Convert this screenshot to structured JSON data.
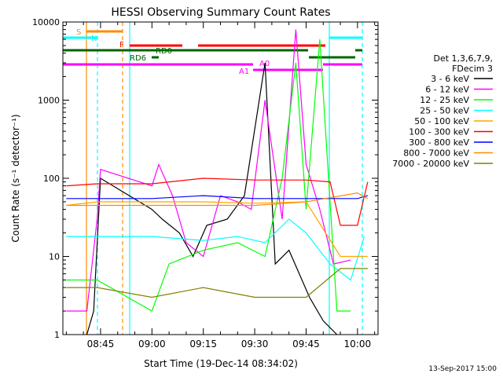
{
  "chart_data": {
    "type": "line",
    "title": "HESSI Observing Summary Count Rates",
    "xlabel": "Start Time (19-Dec-14 08:34:02)",
    "ylabel": "Count Rate (s⁻¹ detector⁻¹)",
    "y_scale": "log",
    "ylim": [
      1,
      10000
    ],
    "xlim": [
      "08:34",
      "10:06"
    ],
    "x_ticks": [
      "08:45",
      "09:00",
      "09:15",
      "09:30",
      "09:45",
      "10:00"
    ],
    "y_ticks": [
      "1",
      "10",
      "100",
      "1000",
      "10000"
    ],
    "legend_header": [
      "Det 1,3,6,7,9,",
      "FDecim 3"
    ],
    "legend_position": "right",
    "annotations": [
      {
        "text": "S",
        "color": "#ff8c00"
      },
      {
        "text": "N",
        "color": "#00ffff"
      },
      {
        "text": "F",
        "color": "#ff0000"
      },
      {
        "text": "RD0",
        "color": "#006400"
      },
      {
        "text": "RD6",
        "color": "#006400"
      },
      {
        "text": "A0",
        "color": "#ff00ff"
      },
      {
        "text": "A1",
        "color": "#ff00ff"
      }
    ],
    "series": [
      {
        "name": "3 - 6 keV",
        "color": "#000000",
        "x": [
          "08:41",
          "08:43",
          "08:45",
          "09:00",
          "09:03",
          "09:08",
          "09:12",
          "09:16",
          "09:22",
          "09:27",
          "09:33",
          "09:36",
          "09:40",
          "09:46",
          "09:50",
          "09:54"
        ],
        "values": [
          1,
          2,
          100,
          40,
          30,
          20,
          10,
          25,
          30,
          60,
          3000,
          8,
          12,
          3,
          1.5,
          1
        ]
      },
      {
        "name": "6 - 12 keV",
        "color": "#ff00ff",
        "x": [
          "08:35",
          "08:41",
          "08:44",
          "08:45",
          "09:00",
          "09:02",
          "09:06",
          "09:10",
          "09:15",
          "09:20",
          "09:25",
          "09:29",
          "09:33",
          "09:38",
          "09:42",
          "09:45",
          "09:49",
          "09:53",
          "09:58"
        ],
        "values": [
          2,
          2,
          30,
          130,
          80,
          150,
          60,
          15,
          10,
          60,
          50,
          40,
          1000,
          30,
          8000,
          150,
          40,
          8,
          9
        ]
      },
      {
        "name": "12 - 25 keV",
        "color": "#00ff00",
        "x": [
          "08:35",
          "08:44",
          "09:00",
          "09:05",
          "09:15",
          "09:25",
          "09:33",
          "09:38",
          "09:42",
          "09:45",
          "09:49",
          "09:54",
          "09:58"
        ],
        "values": [
          5,
          5,
          2,
          8,
          12,
          15,
          10,
          100,
          3000,
          40,
          6000,
          2,
          2
        ]
      },
      {
        "name": "25 - 50 keV",
        "color": "#00ffff",
        "x": [
          "08:35",
          "08:44",
          "09:00",
          "09:15",
          "09:25",
          "09:33",
          "09:40",
          "09:45",
          "09:52",
          "09:58",
          "10:02"
        ],
        "values": [
          18,
          18,
          18,
          16,
          18,
          15,
          30,
          20,
          8,
          5,
          18
        ]
      },
      {
        "name": "50 - 100 keV",
        "color": "#ffa500",
        "x": [
          "08:35",
          "08:44",
          "09:00",
          "09:15",
          "09:30",
          "09:45",
          "09:55",
          "10:00",
          "10:03"
        ],
        "values": [
          45,
          50,
          50,
          50,
          48,
          50,
          10,
          10,
          10
        ]
      },
      {
        "name": "100 - 300 keV",
        "color": "#ff0000",
        "x": [
          "08:35",
          "08:44",
          "09:00",
          "09:15",
          "09:30",
          "09:45",
          "09:52",
          "09:55",
          "10:00",
          "10:03"
        ],
        "values": [
          80,
          85,
          85,
          100,
          95,
          95,
          90,
          25,
          25,
          90
        ]
      },
      {
        "name": "300 - 800 keV",
        "color": "#0000ff",
        "x": [
          "08:35",
          "08:44",
          "09:00",
          "09:15",
          "09:30",
          "09:45",
          "10:00",
          "10:03"
        ],
        "values": [
          55,
          55,
          55,
          60,
          55,
          55,
          55,
          60
        ]
      },
      {
        "name": "800 - 7000 keV",
        "color": "#ff8c00",
        "x": [
          "08:35",
          "08:44",
          "09:00",
          "09:15",
          "09:30",
          "09:45",
          "10:00",
          "10:03"
        ],
        "values": [
          45,
          45,
          45,
          45,
          45,
          50,
          65,
          55
        ]
      },
      {
        "name": "7000 - 20000 keV",
        "color": "#808000",
        "x": [
          "08:35",
          "08:44",
          "09:00",
          "09:15",
          "09:30",
          "09:45",
          "09:55",
          "10:03"
        ],
        "values": [
          4,
          4,
          3,
          4,
          3,
          3,
          7,
          7
        ]
      }
    ]
  },
  "footer": {
    "timestamp": "13-Sep-2017 15:00"
  }
}
